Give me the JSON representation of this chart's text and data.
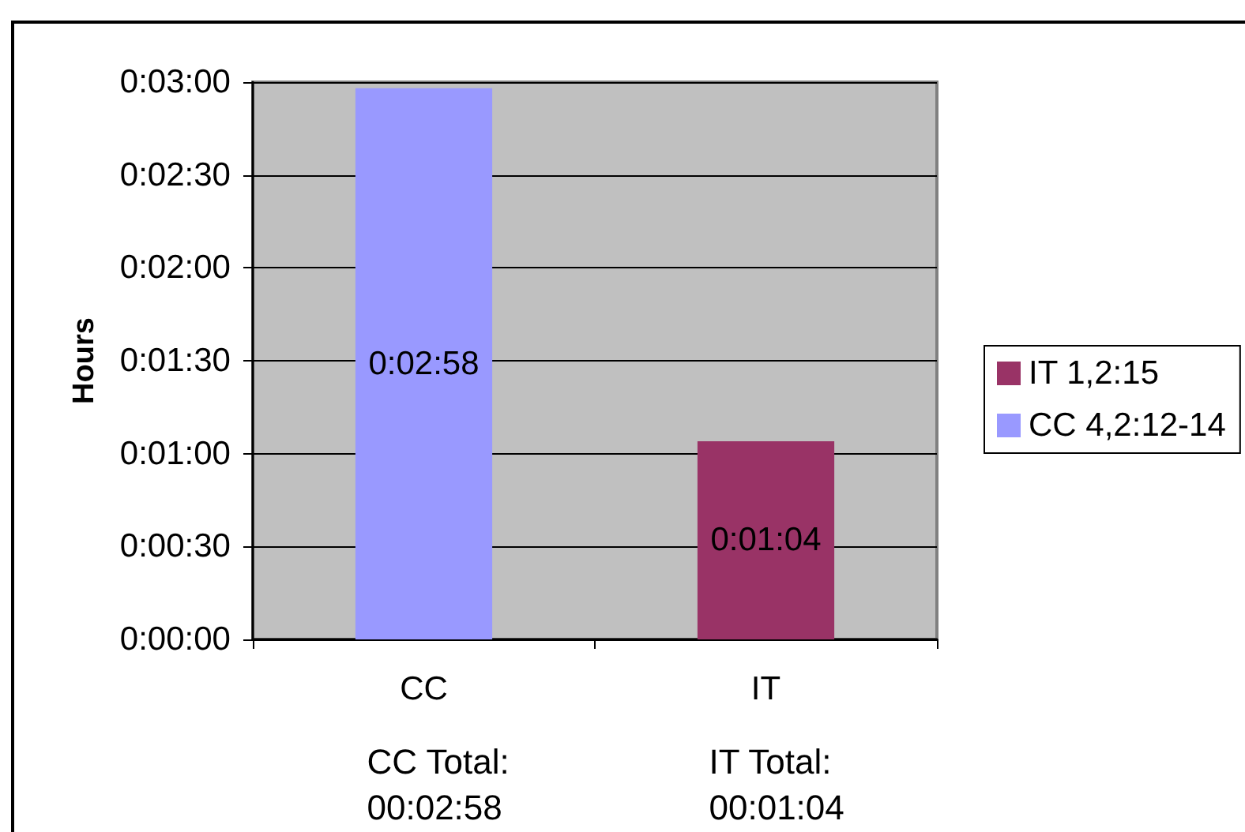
{
  "chart_data": {
    "type": "bar",
    "ylabel": "Hours",
    "categories": [
      "CC",
      "IT"
    ],
    "series": [
      {
        "name": "IT 1,2:15",
        "color": "#993366",
        "values": [
          null,
          64
        ],
        "value_labels": [
          null,
          "0:01:04"
        ]
      },
      {
        "name": "CC 4,2:12-14",
        "color": "#9999ff",
        "values": [
          178,
          null
        ],
        "value_labels": [
          "0:02:58",
          null
        ]
      }
    ],
    "stacked": true,
    "ylim": [
      0,
      180
    ],
    "yticks": [
      {
        "value": 0,
        "label": "0:00:00"
      },
      {
        "value": 30,
        "label": "0:00:30"
      },
      {
        "value": 60,
        "label": "0:01:00"
      },
      {
        "value": 90,
        "label": "0:01:30"
      },
      {
        "value": 120,
        "label": "0:02:00"
      },
      {
        "value": 150,
        "label": "0:02:30"
      },
      {
        "value": 180,
        "label": "0:03:00"
      }
    ],
    "grid": "y",
    "legend": "right",
    "annotations": [
      "CC Total: 00:02:58",
      "IT Total: 00:01:04"
    ]
  }
}
